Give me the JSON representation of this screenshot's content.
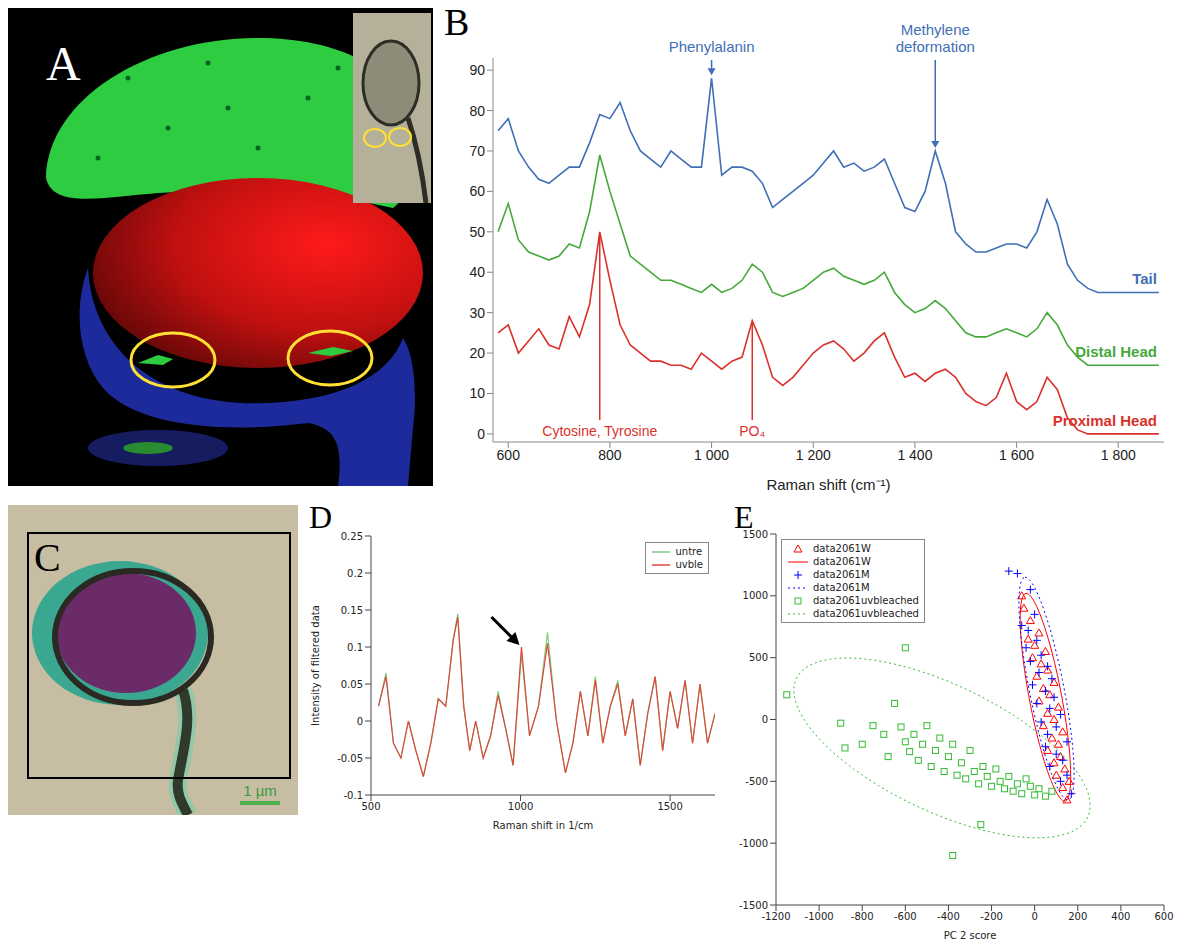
{
  "images": [
    {
      "panel": "A"
    },
    {
      "panel": "C",
      "scale_bar": "1 µm"
    }
  ],
  "chart_data": [
    {
      "panel": "B",
      "type": "line",
      "xlabel": "Raman shift (cm⁻¹)",
      "x": [
        580,
        600,
        620,
        640,
        660,
        680,
        700,
        720,
        740,
        760,
        780,
        800,
        820,
        840,
        860,
        880,
        900,
        920,
        940,
        960,
        980,
        1000,
        1020,
        1040,
        1060,
        1080,
        1100,
        1120,
        1140,
        1160,
        1180,
        1200,
        1220,
        1240,
        1260,
        1280,
        1300,
        1320,
        1340,
        1360,
        1380,
        1400,
        1420,
        1440,
        1460,
        1480,
        1500,
        1520,
        1540,
        1560,
        1580,
        1600,
        1620,
        1640,
        1660,
        1680,
        1700,
        1720,
        1740,
        1760,
        1780,
        1800,
        1820,
        1840,
        1860,
        1880
      ],
      "xlim": [
        570,
        1890
      ],
      "xticks": [
        600,
        800,
        {
          "value": 1000,
          "label": "1 000"
        },
        {
          "value": 1200,
          "label": "1 200"
        },
        {
          "value": 1400,
          "label": "1 400"
        },
        {
          "value": 1600,
          "label": "1 600"
        },
        {
          "value": 1800,
          "label": "1 800"
        }
      ],
      "ylim": [
        -2,
        93
      ],
      "yticks": [
        0,
        10,
        20,
        30,
        40,
        50,
        60,
        70,
        80,
        90
      ],
      "series": [
        {
          "name": "Tail",
          "color": "#3f6fb6",
          "values": [
            75,
            78,
            70,
            66,
            63,
            62,
            64,
            66,
            66,
            72,
            79,
            78,
            82,
            75,
            70,
            68,
            66,
            70,
            68,
            66,
            66,
            88,
            64,
            66,
            66,
            65,
            62,
            56,
            58,
            60,
            62,
            64,
            67,
            70,
            66,
            67,
            65,
            66,
            68,
            62,
            56,
            55,
            60,
            70,
            62,
            50,
            47,
            45,
            45,
            46,
            47,
            47,
            46,
            50,
            58,
            52,
            42,
            38,
            36,
            35,
            35,
            35,
            35,
            35,
            35,
            35
          ],
          "annotations": [
            {
              "text": "Phenylalanin",
              "x": 1000,
              "y": 88
            },
            {
              "text": "Methylene deformation",
              "x": 1440,
              "y": 70
            }
          ]
        },
        {
          "name": "Distal Head",
          "color": "#45a83a",
          "values": [
            50,
            57,
            48,
            45,
            44,
            43,
            44,
            47,
            46,
            55,
            69,
            60,
            52,
            44,
            42,
            40,
            38,
            38,
            37,
            36,
            35,
            37,
            35,
            36,
            38,
            42,
            40,
            35,
            34,
            35,
            36,
            38,
            40,
            41,
            39,
            38,
            37,
            38,
            40,
            35,
            32,
            30,
            31,
            33,
            31,
            28,
            25,
            24,
            24,
            25,
            26,
            25,
            24,
            26,
            30,
            27,
            22,
            19,
            17,
            17,
            17,
            17,
            17,
            17,
            17,
            17
          ]
        },
        {
          "name": "Proximal Head",
          "color": "#d9322b",
          "values": [
            25,
            27,
            20,
            23,
            26,
            22,
            21,
            29,
            24,
            32,
            50,
            38,
            27,
            22,
            20,
            18,
            18,
            17,
            17,
            16,
            20,
            18,
            16,
            18,
            19,
            28,
            22,
            14,
            12,
            14,
            17,
            20,
            22,
            23,
            21,
            18,
            20,
            23,
            25,
            19,
            14,
            15,
            13,
            15,
            16,
            14,
            10,
            8,
            7,
            9,
            15,
            8,
            6,
            8,
            14,
            11,
            4,
            1,
            0,
            0,
            0,
            0,
            0,
            0,
            0,
            0
          ],
          "annotations": [
            {
              "text": "Cytosine, Tyrosine",
              "x": 780,
              "y": 50
            },
            {
              "text": "PO₄",
              "x": 1080,
              "y": 28
            }
          ]
        }
      ]
    },
    {
      "panel": "D",
      "type": "line",
      "xlabel": "Raman shift in 1/cm",
      "ylabel": "Intensity of filtered data",
      "x": [
        525,
        550,
        575,
        600,
        625,
        650,
        675,
        700,
        725,
        750,
        775,
        790,
        810,
        830,
        850,
        875,
        900,
        925,
        950,
        975,
        1003,
        1030,
        1060,
        1090,
        1120,
        1150,
        1175,
        1200,
        1225,
        1250,
        1275,
        1300,
        1325,
        1350,
        1375,
        1400,
        1425,
        1450,
        1475,
        1500,
        1525,
        1550,
        1575,
        1600,
        1625,
        1650
      ],
      "xlim": [
        500,
        1650
      ],
      "xticks": [
        500,
        1000,
        1500
      ],
      "ylim": [
        -0.1,
        0.25
      ],
      "yticks": [
        -0.1,
        -0.05,
        0,
        0.05,
        0.1,
        0.15,
        0.2,
        0.25
      ],
      "legend": "upper right",
      "series": [
        {
          "name": "untre",
          "color": "#7ccd7c",
          "values": [
            0.02,
            0.065,
            -0.03,
            -0.05,
            0,
            -0.04,
            -0.075,
            -0.03,
            0.03,
            0.02,
            0.11,
            0.145,
            0.02,
            -0.04,
            0,
            -0.05,
            -0.02,
            0.04,
            -0.01,
            -0.06,
            0.09,
            -0.02,
            0.02,
            0.12,
            0,
            -0.07,
            -0.03,
            0.04,
            -0.02,
            0.06,
            -0.03,
            0.02,
            0.055,
            -0.02,
            0.03,
            -0.06,
            0.01,
            0.06,
            -0.04,
            0.04,
            -0.01,
            0.055,
            -0.03,
            0.05,
            -0.03,
            0.01
          ]
        },
        {
          "name": "uvble",
          "color": "#e0463c",
          "values": [
            0.02,
            0.06,
            -0.03,
            -0.05,
            0,
            -0.04,
            -0.075,
            -0.03,
            0.03,
            0.02,
            0.11,
            0.14,
            0.02,
            -0.04,
            0,
            -0.05,
            -0.02,
            0.035,
            -0.01,
            -0.06,
            0.1,
            -0.02,
            0.02,
            0.105,
            0,
            -0.07,
            -0.03,
            0.04,
            -0.02,
            0.055,
            -0.03,
            0.02,
            0.05,
            -0.02,
            0.03,
            -0.06,
            0.01,
            0.06,
            -0.04,
            0.04,
            -0.01,
            0.055,
            -0.03,
            0.05,
            -0.03,
            0.01
          ]
        }
      ],
      "arrow": {
        "x": 1003,
        "y": 0.1
      }
    },
    {
      "panel": "E",
      "type": "scatter",
      "xlabel": "PC 2 score",
      "xlim": [
        -1200,
        600
      ],
      "xticks": [
        -1200,
        -1000,
        -800,
        -600,
        -400,
        -200,
        0,
        200,
        400,
        600
      ],
      "ylim": [
        -1500,
        1500
      ],
      "yticks": [
        -1500,
        -1000,
        -500,
        0,
        500,
        1000,
        1500
      ],
      "legend": "upper left",
      "series": [
        {
          "name": "data2061W",
          "type": "scatter",
          "color": "#ff0000",
          "marker": "triangle",
          "x": [
            150,
            130,
            160,
            100,
            140,
            90,
            120,
            60,
            110,
            80,
            130,
            40,
            90,
            60,
            110,
            20,
            70,
            40,
            90,
            10,
            60,
            30,
            -10,
            50,
            0,
            -30,
            20,
            -20,
            -50,
            -60
          ],
          "y": [
            -650,
            -550,
            -500,
            -450,
            -400,
            -350,
            -300,
            -250,
            -200,
            -150,
            -100,
            -50,
            0,
            50,
            100,
            150,
            200,
            250,
            300,
            350,
            400,
            450,
            500,
            550,
            600,
            650,
            700,
            800,
            900,
            1000
          ]
        },
        {
          "name": "data2061W",
          "type": "line",
          "color": "#ff0000",
          "line_style": "solid",
          "ellipse": {
            "center": [
              50,
              180
            ],
            "axis1": [
              -90,
              840
            ],
            "axis2": [
              75,
              12
            ]
          }
        },
        {
          "name": "data2061M",
          "type": "scatter",
          "color": "#0000ff",
          "marker": "plus",
          "x": [
            170,
            120,
            150,
            70,
            130,
            100,
            50,
            150,
            60,
            100,
            30,
            120,
            70,
            10,
            90,
            50,
            -10,
            80,
            20,
            60,
            -20,
            30,
            -40,
            10,
            -30,
            -60,
            0,
            -120,
            -80,
            -20
          ],
          "y": [
            -600,
            -500,
            -450,
            -380,
            -330,
            -280,
            -220,
            -180,
            -120,
            -60,
            -20,
            40,
            90,
            130,
            180,
            230,
            280,
            330,
            380,
            430,
            470,
            520,
            580,
            640,
            720,
            760,
            850,
            1200,
            1180,
            1050
          ]
        },
        {
          "name": "data2061M",
          "type": "line",
          "color": "#0000ff",
          "line_style": "dotted",
          "ellipse": {
            "center": [
              55,
              250
            ],
            "axis1": [
              -100,
              900
            ],
            "axis2": [
              80,
              15
            ]
          }
        },
        {
          "name": "data2061uvbleached",
          "type": "scatter",
          "color": "#33bb33",
          "marker": "square",
          "x": [
            -1150,
            -600,
            -800,
            -880,
            -750,
            -700,
            -680,
            -620,
            -600,
            -580,
            -560,
            -540,
            -520,
            -500,
            -480,
            -460,
            -440,
            -420,
            -400,
            -380,
            -360,
            -340,
            -320,
            -300,
            -280,
            -260,
            -240,
            -220,
            -200,
            -180,
            -160,
            -140,
            -120,
            -100,
            -80,
            -60,
            -40,
            -20,
            0,
            20,
            50,
            80,
            -380,
            -250,
            -650,
            -900
          ],
          "y": [
            200,
            580,
            -200,
            -230,
            -50,
            -120,
            -300,
            -60,
            -180,
            -260,
            -120,
            -330,
            -200,
            -50,
            -380,
            -250,
            -150,
            -420,
            -300,
            -200,
            -450,
            -350,
            -480,
            -250,
            -420,
            -520,
            -380,
            -460,
            -540,
            -400,
            -500,
            -560,
            -460,
            -580,
            -520,
            -600,
            -480,
            -540,
            -610,
            -560,
            -620,
            -580,
            -1100,
            -850,
            130,
            -30
          ]
        },
        {
          "name": "data2061uvbleached",
          "type": "line",
          "color": "#33bb33",
          "line_style": "dotted",
          "ellipse": {
            "center": [
              -430,
              -230
            ],
            "axis1": [
              -680,
              380
            ],
            "axis2": [
              100,
              -620
            ]
          }
        }
      ]
    }
  ]
}
